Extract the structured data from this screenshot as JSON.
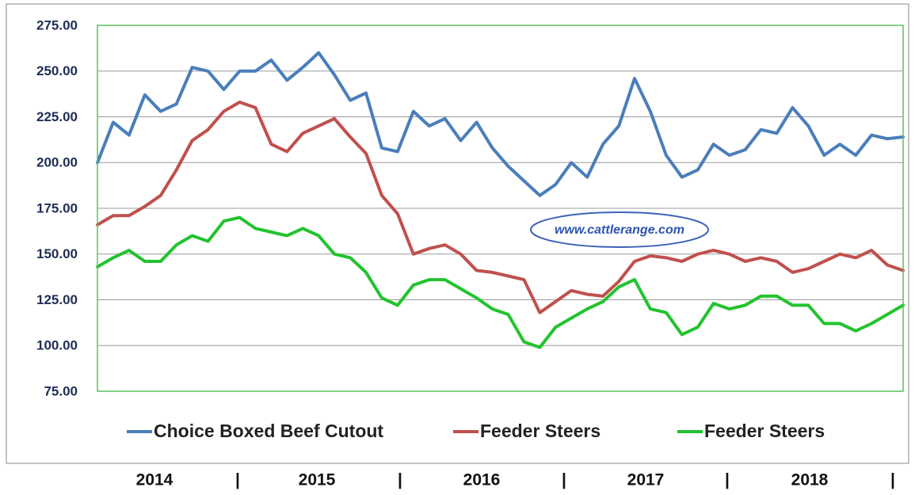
{
  "chart_data": {
    "type": "line",
    "annotation": "www.cattlerange.com",
    "year_labels": [
      "2014",
      "|",
      "2015",
      "|",
      "2016",
      "|",
      "2017",
      "|",
      "2018",
      "|"
    ],
    "ylim": [
      75,
      275
    ],
    "yticks": [
      {
        "value": 75,
        "label": "75.00"
      },
      {
        "value": 100,
        "label": "100.00"
      },
      {
        "value": 125,
        "label": "125.00"
      },
      {
        "value": 150,
        "label": "150.00"
      },
      {
        "value": 175,
        "label": "175.00"
      },
      {
        "value": 200,
        "label": "200.00"
      },
      {
        "value": 225,
        "label": "225.00"
      },
      {
        "value": 250,
        "label": "250.00"
      },
      {
        "value": 275,
        "label": "275.00"
      }
    ],
    "grid": true,
    "legend": "bottom",
    "series": [
      {
        "name": "Choice Boxed Beef Cutout",
        "color": "#4a7ebb",
        "values": [
          200,
          222,
          215,
          237,
          228,
          232,
          252,
          250,
          240,
          250,
          250,
          256,
          245,
          252,
          260,
          248,
          234,
          238,
          208,
          206,
          228,
          220,
          224,
          212,
          222,
          208,
          198,
          190,
          182,
          188,
          200,
          192,
          210,
          220,
          246,
          228,
          204,
          192,
          196,
          210,
          204,
          207,
          218,
          216,
          230,
          220,
          204,
          210,
          204,
          215,
          213,
          214
        ]
      },
      {
        "name": "Feeder Steers",
        "color": "#c0504d",
        "values": [
          166,
          171,
          171,
          176,
          182,
          196,
          212,
          218,
          228,
          233,
          230,
          210,
          206,
          216,
          220,
          224,
          214,
          205,
          182,
          172,
          150,
          153,
          155,
          150,
          141,
          140,
          138,
          136,
          118,
          124,
          130,
          128,
          127,
          135,
          146,
          149,
          148,
          146,
          150,
          152,
          150,
          146,
          148,
          146,
          140,
          142,
          146,
          150,
          148,
          152,
          144,
          141
        ]
      },
      {
        "name": "Feeder Steers",
        "color": "#22c32e",
        "values": [
          143,
          148,
          152,
          146,
          146,
          155,
          160,
          157,
          168,
          170,
          164,
          162,
          160,
          164,
          160,
          150,
          148,
          140,
          126,
          122,
          133,
          136,
          136,
          131,
          126,
          120,
          117,
          102,
          99,
          110,
          115,
          120,
          124,
          132,
          136,
          120,
          118,
          106,
          110,
          123,
          120,
          122,
          127,
          127,
          122,
          122,
          112,
          112,
          108,
          112,
          117,
          122
        ]
      }
    ]
  }
}
